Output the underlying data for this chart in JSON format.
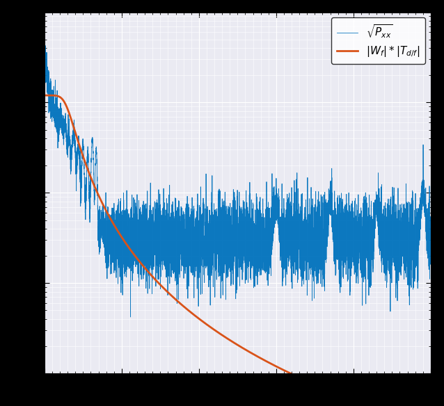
{
  "title": "",
  "xlabel": "",
  "ylabel": "",
  "xlim": [
    0,
    500
  ],
  "ylim": [
    1e-09,
    1e-05
  ],
  "blue_color": "#0072bd",
  "orange_color": "#d95319",
  "legend_labels": [
    "$\\sqrt{P_{xx}}$",
    "$|W_f| * |T_{d/f}|$"
  ],
  "background_color": "#eaeaf2",
  "grid_color": "#ffffff",
  "fig_bg": "#000000"
}
